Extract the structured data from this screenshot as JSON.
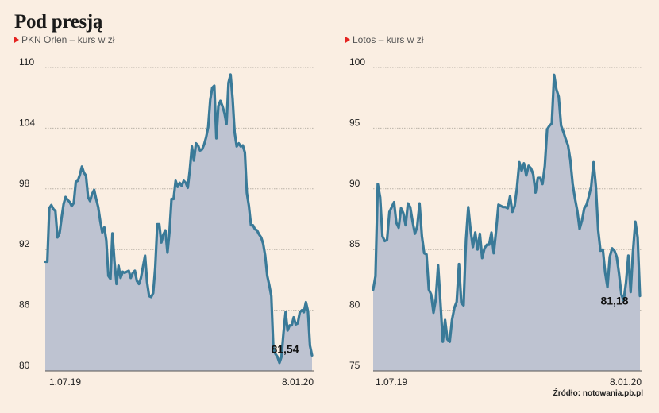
{
  "title": "Pod presją",
  "source": "Źródło: notowania.pb.pl",
  "colors": {
    "line": "#3a7a98",
    "area": "#bec3d1",
    "grid": "#b9b2a8",
    "marker": "#e42320",
    "background": "#faeee2"
  },
  "chart_data": [
    {
      "type": "area",
      "subtitle": "PKN Orlen – kurs w zł",
      "ylim": [
        80,
        110
      ],
      "yticks": [
        "80",
        "86",
        "92",
        "98",
        "104",
        "110"
      ],
      "xticks": [
        "1.07.19",
        "8.01.20"
      ],
      "last_label": "81,54",
      "values": [
        90.8,
        90.8,
        96.1,
        96.4,
        96,
        95.8,
        93.2,
        93.6,
        95.1,
        96.5,
        97.2,
        96.9,
        96.7,
        96.3,
        96.6,
        98.7,
        98.8,
        99.4,
        100.2,
        99.6,
        99.3,
        97.2,
        96.8,
        97.5,
        97.9,
        97,
        96.2,
        94.8,
        93.7,
        94.2,
        92.9,
        89.4,
        89.1,
        93.6,
        90.8,
        88.6,
        90.4,
        89.2,
        89.8,
        89.7,
        89.8,
        89.9,
        89.2,
        89.7,
        89.9,
        88.9,
        88.6,
        89.2,
        90.3,
        91.4,
        88.8,
        87.4,
        87.3,
        87.7,
        90.2,
        94.5,
        94.5,
        92.7,
        93.5,
        93.9,
        91.7,
        93.8,
        97,
        97,
        98.8,
        98.2,
        98.6,
        98.3,
        98.8,
        98.6,
        98.1,
        99.9,
        102.2,
        100.8,
        102.5,
        102.3,
        101.8,
        101.9,
        102.4,
        103.1,
        104.1,
        106.8,
        108,
        108.2,
        103,
        106.2,
        106.7,
        106.2,
        105.5,
        104.4,
        108.5,
        109.3,
        106.9,
        103.6,
        102.2,
        102.5,
        102.2,
        102.3,
        101.6,
        97.6,
        96.3,
        94.4,
        94.4,
        94,
        93.9,
        93.5,
        93.2,
        92.6,
        91.4,
        89.4,
        88.5,
        87.4,
        82.2,
        81.7,
        81.4,
        80.8,
        81.4,
        83.8,
        85.8,
        84,
        84.5,
        84.5,
        85.3,
        84.6,
        84.7,
        85.8,
        86,
        85.8,
        86.8,
        85.9,
        82.5,
        81.54
      ]
    },
    {
      "type": "area",
      "subtitle": "Lotos – kurs w zł",
      "ylim": [
        75,
        100
      ],
      "yticks": [
        "75",
        "80",
        "85",
        "90",
        "95",
        "100"
      ],
      "xticks": [
        "1.07.19",
        "8.01.20"
      ],
      "last_label": "81,18",
      "values": [
        81.7,
        82.8,
        90.4,
        89.3,
        86.1,
        85.7,
        85.8,
        88.1,
        88.5,
        88.9,
        87.2,
        86.8,
        88.4,
        88,
        87,
        88.8,
        88.5,
        87.3,
        86.3,
        86.9,
        88.8,
        86.1,
        84.7,
        84.6,
        81.7,
        81.3,
        79.8,
        80.9,
        83.7,
        80.7,
        77.4,
        79.2,
        77.6,
        77.4,
        79.2,
        80.2,
        80.7,
        83.8,
        80.6,
        80.4,
        85.8,
        88.5,
        86.6,
        85.2,
        86.4,
        85,
        86.3,
        84.3,
        85.1,
        85.4,
        85.4,
        86.4,
        84.7,
        86.6,
        88.7,
        88.6,
        88.5,
        88.5,
        88.4,
        89.4,
        88.1,
        88.6,
        90.1,
        92.2,
        91.5,
        92.1,
        91.1,
        91.9,
        91.7,
        91.2,
        89.7,
        90.9,
        90.9,
        90.4,
        91.9,
        94.9,
        95.2,
        95.4,
        99.4,
        98.2,
        97.6,
        95.2,
        94.7,
        94.1,
        93.6,
        92.4,
        90.4,
        89.2,
        88.2,
        86.7,
        87.4,
        88.4,
        88.7,
        89.4,
        90.2,
        92.2,
        90.2,
        86.6,
        84.9,
        85,
        83.1,
        81.9,
        84.4,
        85.1,
        84.9,
        84.4,
        83,
        81.3,
        80.8,
        82.3,
        84.5,
        81.5,
        84.8,
        87.3,
        86,
        81.18
      ]
    }
  ]
}
